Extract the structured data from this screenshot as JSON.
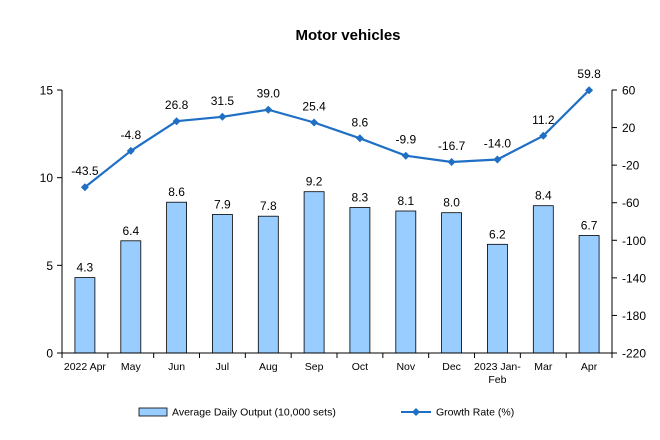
{
  "chart_data": {
    "type": "bar",
    "title": "Motor vehicles",
    "categories": [
      "2022 Apr",
      "May",
      "Jun",
      "Jul",
      "Aug",
      "Sep",
      "Oct",
      "Nov",
      "Dec",
      "2023 Jan-Feb",
      "Mar",
      "Apr"
    ],
    "series": [
      {
        "name": "Average Daily Output (10,000 sets)",
        "type": "bar",
        "axis": "left",
        "color": "#99ccff",
        "values": [
          4.3,
          6.4,
          8.6,
          7.9,
          7.8,
          9.2,
          8.3,
          8.1,
          8.0,
          6.2,
          8.4,
          6.7
        ]
      },
      {
        "name": "Growth Rate (%)",
        "type": "line",
        "axis": "right",
        "color": "#1f6fc5",
        "values": [
          -43.5,
          -4.8,
          26.8,
          31.5,
          39.0,
          25.4,
          8.6,
          -9.9,
          -16.7,
          -14.0,
          11.2,
          59.8
        ]
      }
    ],
    "y_left": {
      "min": 0,
      "max": 15,
      "ticks": [
        0,
        5,
        10,
        15
      ]
    },
    "y_right": {
      "min": -220,
      "max": 60,
      "ticks": [
        60,
        20,
        -20,
        -60,
        -100,
        -140,
        -180,
        -220
      ]
    },
    "grid": false,
    "legend": "bottom"
  }
}
